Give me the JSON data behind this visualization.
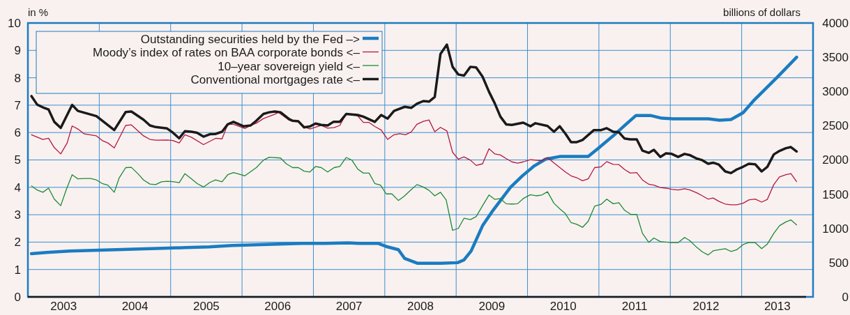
{
  "chart_data": {
    "type": "line",
    "ylabel": "in %",
    "y2label": "billions of dollars",
    "xlim": [
      2003,
      2014
    ],
    "xticks": [
      {
        "value": 2003.5,
        "label": "2003"
      },
      {
        "value": 2004,
        "label": null
      },
      {
        "value": 2004.5,
        "label": "2004"
      },
      {
        "value": 2005,
        "label": null
      },
      {
        "value": 2005.5,
        "label": "2005"
      },
      {
        "value": 2006,
        "label": null
      },
      {
        "value": 2006.5,
        "label": "2006"
      },
      {
        "value": 2007,
        "label": null
      },
      {
        "value": 2007.5,
        "label": "2007"
      },
      {
        "value": 2008,
        "label": null
      },
      {
        "value": 2008.5,
        "label": "2008"
      },
      {
        "value": 2009,
        "label": null
      },
      {
        "value": 2009.5,
        "label": "2009"
      },
      {
        "value": 2010,
        "label": null
      },
      {
        "value": 2010.5,
        "label": "2010"
      },
      {
        "value": 2011,
        "label": null
      },
      {
        "value": 2011.5,
        "label": "2011"
      },
      {
        "value": 2012,
        "label": null
      },
      {
        "value": 2012.5,
        "label": "2012"
      },
      {
        "value": 2013,
        "label": null
      },
      {
        "value": 2013.5,
        "label": "2013"
      }
    ],
    "ylim": [
      0,
      10
    ],
    "yticks": [
      0,
      1,
      2,
      3,
      4,
      5,
      6,
      7,
      8,
      9,
      10
    ],
    "y2lim": [
      0,
      4000
    ],
    "y2ticks": [
      0,
      500,
      1000,
      1500,
      2000,
      2500,
      3000,
      3500,
      4000
    ],
    "grid": true,
    "legend": "top left",
    "line_style": "solid",
    "marker": "none",
    "series": [
      {
        "name": "Outstanding securities held by the Fed –>",
        "color": "#1a7cc1",
        "axis": "y2",
        "x": [
          2003.05,
          2003.26,
          2003.58,
          2003.91,
          2004.24,
          2004.56,
          2004.89,
          2005.21,
          2005.54,
          2005.86,
          2006.19,
          2006.51,
          2006.84,
          2007.16,
          2007.49,
          2007.65,
          2007.91,
          2008.04,
          2008.19,
          2008.28,
          2008.46,
          2008.79,
          2009.02,
          2009.11,
          2009.21,
          2009.37,
          2009.5,
          2009.76,
          2009.93,
          2010.09,
          2010.25,
          2010.45,
          2010.61,
          2010.85,
          2010.98,
          2011.23,
          2011.39,
          2011.52,
          2011.72,
          2011.88,
          2012.04,
          2012.37,
          2012.53,
          2012.69,
          2012.85,
          2013.02,
          2013.18,
          2013.5,
          2013.77
        ],
        "values": [
          630,
          650,
          670,
          680,
          690,
          700,
          710,
          720,
          730,
          750,
          760,
          770,
          780,
          780,
          790,
          780,
          780,
          730,
          690,
          560,
          490,
          490,
          500,
          540,
          670,
          1040,
          1240,
          1600,
          1770,
          1910,
          2010,
          2050,
          2050,
          2050,
          2160,
          2380,
          2530,
          2650,
          2650,
          2610,
          2600,
          2600,
          2600,
          2580,
          2590,
          2690,
          2880,
          3210,
          3500
        ]
      },
      {
        "name": "Moody’s index of rates on BAA corporate bonds <–",
        "color": "#b5173f",
        "x": [
          2003.05,
          2003.21,
          2003.29,
          2003.37,
          2003.46,
          2003.55,
          2003.62,
          2003.7,
          2003.79,
          2003.96,
          2004.04,
          2004.12,
          2004.21,
          2004.37,
          2004.45,
          2004.62,
          2004.71,
          2004.79,
          2004.95,
          2005.03,
          2005.12,
          2005.2,
          2005.29,
          2005.46,
          2005.63,
          2005.72,
          2005.8,
          2005.88,
          2006.04,
          2006.12,
          2006.2,
          2006.3,
          2006.46,
          2006.51,
          2006.66,
          2006.71,
          2006.79,
          2006.87,
          2006.95,
          2007.11,
          2007.2,
          2007.29,
          2007.37,
          2007.46,
          2007.62,
          2007.7,
          2007.78,
          2007.86,
          2007.95,
          2008.04,
          2008.13,
          2008.21,
          2008.29,
          2008.37,
          2008.45,
          2008.54,
          2008.62,
          2008.7,
          2008.78,
          2008.87,
          2008.95,
          2009.03,
          2009.11,
          2009.2,
          2009.28,
          2009.37,
          2009.46,
          2009.54,
          2009.62,
          2009.7,
          2009.78,
          2009.86,
          2009.94,
          2010.04,
          2010.2,
          2010.28,
          2010.37,
          2010.53,
          2010.61,
          2010.69,
          2010.77,
          2010.85,
          2010.94,
          2011.03,
          2011.11,
          2011.2,
          2011.28,
          2011.36,
          2011.44,
          2011.53,
          2011.61,
          2011.7,
          2011.77,
          2011.86,
          2011.94,
          2012.02,
          2012.11,
          2012.2,
          2012.27,
          2012.37,
          2012.45,
          2012.53,
          2012.6,
          2012.68,
          2012.77,
          2012.85,
          2012.93,
          2013.02,
          2013.1,
          2013.19,
          2013.28,
          2013.36,
          2013.45,
          2013.53,
          2013.62,
          2013.69,
          2013.77
        ],
        "values": [
          5.92,
          5.75,
          5.79,
          5.45,
          5.22,
          5.62,
          6.24,
          6.13,
          5.95,
          5.88,
          5.71,
          5.62,
          5.44,
          6.26,
          6.28,
          5.88,
          5.75,
          5.72,
          5.73,
          5.71,
          5.62,
          5.92,
          5.83,
          5.56,
          5.79,
          5.77,
          6.3,
          6.3,
          6.15,
          6.26,
          6.34,
          6.51,
          6.67,
          6.74,
          6.45,
          6.43,
          6.39,
          6.22,
          6.13,
          6.26,
          6.16,
          6.18,
          6.26,
          6.68,
          6.61,
          6.37,
          6.37,
          6.22,
          6.09,
          5.75,
          5.92,
          5.96,
          5.92,
          6.02,
          6.3,
          6.41,
          6.46,
          6.03,
          6.19,
          6.06,
          5.28,
          5.03,
          5.11,
          4.99,
          4.8,
          4.86,
          5.41,
          5.22,
          5.18,
          5.05,
          4.93,
          4.88,
          4.93,
          5.01,
          4.97,
          5.09,
          4.89,
          4.56,
          4.42,
          4.35,
          4.24,
          4.31,
          4.72,
          4.75,
          4.94,
          4.84,
          4.83,
          4.65,
          4.52,
          4.54,
          4.27,
          4.11,
          4.08,
          3.99,
          3.97,
          3.93,
          3.9,
          3.95,
          3.91,
          3.8,
          3.69,
          3.57,
          3.61,
          3.49,
          3.39,
          3.36,
          3.36,
          3.42,
          3.54,
          3.57,
          3.46,
          3.56,
          4.1,
          4.38,
          4.46,
          4.5,
          4.21
        ]
      },
      {
        "name": "10–year sovereign yield <–",
        "color": "#1a8a35",
        "x": [
          2003.05,
          2003.13,
          2003.21,
          2003.29,
          2003.37,
          2003.46,
          2003.54,
          2003.62,
          2003.7,
          2003.79,
          2003.88,
          2003.96,
          2004.04,
          2004.12,
          2004.21,
          2004.28,
          2004.37,
          2004.45,
          2004.54,
          2004.62,
          2004.71,
          2004.79,
          2004.87,
          2004.95,
          2005.03,
          2005.12,
          2005.2,
          2005.29,
          2005.37,
          2005.46,
          2005.55,
          2005.63,
          2005.72,
          2005.8,
          2005.88,
          2005.96,
          2006.04,
          2006.2,
          2006.3,
          2006.38,
          2006.54,
          2006.62,
          2006.71,
          2006.79,
          2006.87,
          2006.95,
          2007.03,
          2007.11,
          2007.2,
          2007.29,
          2007.37,
          2007.46,
          2007.54,
          2007.62,
          2007.7,
          2007.78,
          2007.86,
          2007.94,
          2008.02,
          2008.1,
          2008.19,
          2008.27,
          2008.35,
          2008.45,
          2008.54,
          2008.62,
          2008.7,
          2008.78,
          2008.86,
          2008.95,
          2009.03,
          2009.11,
          2009.2,
          2009.28,
          2009.37,
          2009.46,
          2009.54,
          2009.62,
          2009.7,
          2009.78,
          2009.86,
          2009.94,
          2010.04,
          2010.12,
          2010.2,
          2010.28,
          2010.37,
          2010.45,
          2010.53,
          2010.61,
          2010.69,
          2010.77,
          2010.85,
          2010.94,
          2011.03,
          2011.11,
          2011.2,
          2011.28,
          2011.36,
          2011.45,
          2011.53,
          2011.61,
          2011.7,
          2011.77,
          2011.86,
          2012.02,
          2012.11,
          2012.2,
          2012.27,
          2012.37,
          2012.45,
          2012.53,
          2012.6,
          2012.68,
          2012.77,
          2012.85,
          2012.93,
          2013.02,
          2013.1,
          2013.19,
          2013.28,
          2013.36,
          2013.45,
          2013.53,
          2013.62,
          2013.69,
          2013.77
        ],
        "values": [
          4.05,
          3.9,
          3.82,
          3.97,
          3.57,
          3.33,
          3.93,
          4.46,
          4.31,
          4.32,
          4.32,
          4.27,
          4.14,
          4.08,
          3.82,
          4.35,
          4.72,
          4.73,
          4.5,
          4.27,
          4.12,
          4.1,
          4.2,
          4.22,
          4.21,
          4.17,
          4.5,
          4.31,
          4.14,
          4.01,
          4.18,
          4.27,
          4.2,
          4.46,
          4.54,
          4.48,
          4.42,
          4.72,
          4.99,
          5.1,
          5.07,
          4.86,
          4.72,
          4.72,
          4.59,
          4.56,
          4.76,
          4.72,
          4.56,
          4.72,
          4.76,
          5.09,
          4.99,
          4.67,
          4.52,
          4.52,
          4.14,
          4.08,
          3.76,
          3.76,
          3.52,
          3.67,
          3.87,
          4.1,
          4.01,
          3.89,
          3.69,
          3.82,
          3.54,
          2.43,
          2.5,
          2.87,
          2.82,
          2.93,
          3.33,
          3.72,
          3.56,
          3.59,
          3.4,
          3.39,
          3.4,
          3.59,
          3.73,
          3.69,
          3.72,
          3.84,
          3.42,
          3.22,
          3.04,
          2.71,
          2.65,
          2.54,
          2.76,
          3.31,
          3.38,
          3.57,
          3.4,
          3.44,
          3.16,
          3.01,
          3.01,
          2.32,
          1.99,
          2.15,
          2.02,
          1.98,
          1.98,
          2.17,
          2.06,
          1.81,
          1.64,
          1.53,
          1.68,
          1.72,
          1.76,
          1.66,
          1.72,
          1.91,
          1.99,
          1.98,
          1.76,
          1.93,
          2.32,
          2.6,
          2.74,
          2.81,
          2.63
        ]
      },
      {
        "name": "Conventional mortgages rate <–",
        "color": "#1a1a1a",
        "x": [
          2003.05,
          2003.13,
          2003.21,
          2003.29,
          2003.37,
          2003.46,
          2003.62,
          2003.7,
          2003.96,
          2004.21,
          2004.37,
          2004.45,
          2004.62,
          2004.71,
          2004.79,
          2004.95,
          2005.03,
          2005.12,
          2005.2,
          2005.29,
          2005.37,
          2005.46,
          2005.55,
          2005.63,
          2005.72,
          2005.8,
          2005.88,
          2006.02,
          2006.12,
          2006.2,
          2006.3,
          2006.38,
          2006.46,
          2006.54,
          2006.66,
          2006.71,
          2006.79,
          2006.87,
          2006.95,
          2007.03,
          2007.11,
          2007.2,
          2007.28,
          2007.37,
          2007.46,
          2007.62,
          2007.7,
          2007.86,
          2007.95,
          2008.04,
          2008.13,
          2008.28,
          2008.37,
          2008.45,
          2008.54,
          2008.62,
          2008.7,
          2008.78,
          2008.87,
          2008.95,
          2009.03,
          2009.11,
          2009.2,
          2009.28,
          2009.37,
          2009.46,
          2009.54,
          2009.62,
          2009.7,
          2009.78,
          2009.94,
          2010.04,
          2010.11,
          2010.28,
          2010.37,
          2010.45,
          2010.53,
          2010.61,
          2010.69,
          2010.77,
          2010.93,
          2011.03,
          2011.11,
          2011.2,
          2011.28,
          2011.36,
          2011.44,
          2011.53,
          2011.61,
          2011.7,
          2011.77,
          2011.86,
          2011.94,
          2012.02,
          2012.11,
          2012.2,
          2012.27,
          2012.37,
          2012.45,
          2012.53,
          2012.6,
          2012.68,
          2012.77,
          2012.85,
          2012.93,
          2013.02,
          2013.1,
          2013.19,
          2013.28,
          2013.36,
          2013.45,
          2013.53,
          2013.62,
          2013.69,
          2013.77
        ],
        "values": [
          7.33,
          7.02,
          6.92,
          6.84,
          6.39,
          6.17,
          7.01,
          6.79,
          6.6,
          6.09,
          6.75,
          6.77,
          6.47,
          6.26,
          6.2,
          6.15,
          6,
          5.79,
          6.05,
          6.03,
          5.99,
          5.85,
          5.94,
          5.95,
          6.03,
          6.3,
          6.39,
          6.23,
          6.26,
          6.43,
          6.68,
          6.74,
          6.77,
          6.74,
          6.49,
          6.43,
          6.41,
          6.19,
          6.22,
          6.33,
          6.28,
          6.26,
          6.39,
          6.39,
          6.68,
          6.64,
          6.58,
          6.39,
          6.64,
          6.51,
          6.79,
          6.94,
          6.9,
          7.05,
          7.15,
          7.13,
          7.3,
          8.87,
          9.21,
          8.4,
          8.12,
          8.08,
          8.4,
          8.38,
          8.04,
          7.49,
          7.07,
          6.58,
          6.3,
          6.28,
          6.36,
          6.23,
          6.34,
          6.24,
          6.03,
          6.23,
          5.96,
          5.65,
          5.65,
          5.73,
          6.09,
          6.09,
          6.16,
          6.03,
          6.01,
          5.78,
          5.75,
          5.75,
          5.34,
          5.26,
          5.37,
          5.11,
          5.24,
          5.22,
          5.11,
          5.22,
          5.18,
          5.05,
          4.99,
          4.86,
          4.9,
          4.83,
          4.58,
          4.52,
          4.65,
          4.75,
          4.86,
          4.84,
          4.58,
          4.75,
          5.2,
          5.33,
          5.43,
          5.47,
          5.31
        ]
      }
    ]
  }
}
